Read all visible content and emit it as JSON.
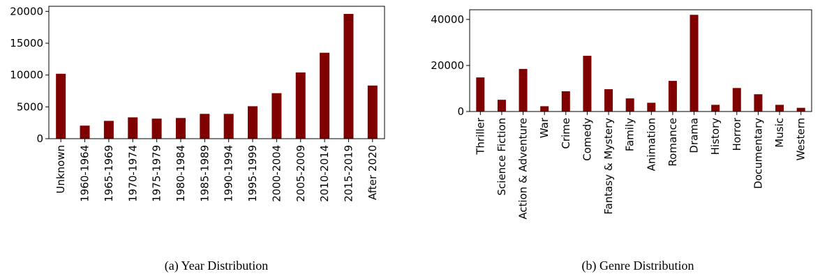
{
  "chart_data": [
    {
      "type": "bar",
      "caption": "(a) Year Distribution",
      "categories": [
        "Unknown",
        "1960-1964",
        "1965-1969",
        "1970-1974",
        "1975-1979",
        "1980-1984",
        "1985-1989",
        "1990-1994",
        "1995-1999",
        "2000-2004",
        "2005-2009",
        "2010-2014",
        "2015-2019",
        "After 2020"
      ],
      "values": [
        10200,
        2050,
        2800,
        3350,
        3150,
        3250,
        3900,
        3900,
        5100,
        7150,
        10400,
        13500,
        19600,
        8350
      ],
      "ylim": [
        0,
        20800
      ],
      "yticks": [
        0,
        5000,
        10000,
        15000,
        20000
      ],
      "bar_color": "#800000",
      "grid": false
    },
    {
      "type": "bar",
      "caption": "(b) Genre Distribution",
      "categories": [
        "Thriller",
        "Science Fiction",
        "Action & Adventure",
        "War",
        "Crime",
        "Comedy",
        "Fantasy & Mystery",
        "Family",
        "Animation",
        "Romance",
        "Drama",
        "History",
        "Horror",
        "Documentary",
        "Music",
        "Western"
      ],
      "values": [
        14800,
        5100,
        18500,
        2300,
        8800,
        24200,
        9700,
        5700,
        3800,
        13300,
        42000,
        2900,
        10200,
        7500,
        2900,
        1600
      ],
      "ylim": [
        0,
        44200
      ],
      "yticks": [
        0,
        20000,
        40000
      ],
      "bar_color": "#800000",
      "grid": false
    }
  ]
}
